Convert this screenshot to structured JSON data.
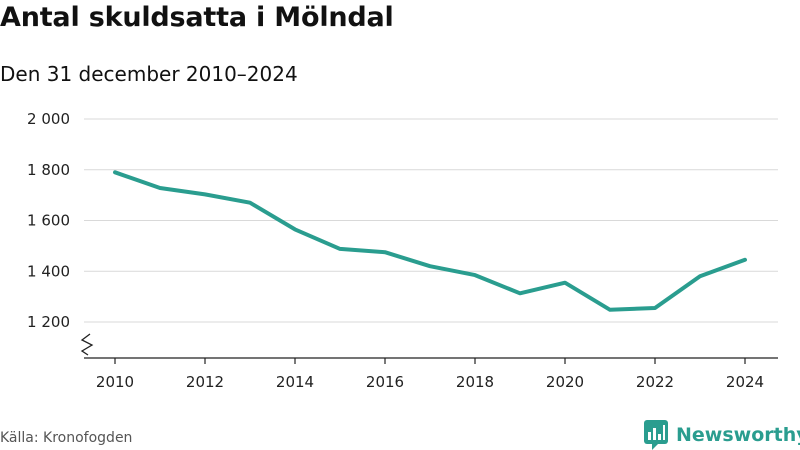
{
  "title": "Antal skuldsatta i Mölndal",
  "subtitle": "Den 31 december 2010–2024",
  "source": "Källa: Kronofogden",
  "brand": "Newsworthy",
  "colors": {
    "line": "#2a9d8f",
    "grid": "#d9d9d9",
    "axis": "#222222",
    "brand": "#2a9d8f"
  },
  "chart_data": {
    "type": "line",
    "title": "Antal skuldsatta i Mölndal",
    "subtitle": "Den 31 december 2010–2024",
    "xlabel": "",
    "ylabel": "",
    "x": [
      2010,
      2011,
      2012,
      2013,
      2014,
      2015,
      2016,
      2017,
      2018,
      2019,
      2020,
      2021,
      2022,
      2023,
      2024
    ],
    "series": [
      {
        "name": "Antal skuldsatta",
        "values": [
          1790,
          1728,
          1703,
          1670,
          1565,
          1488,
          1475,
          1420,
          1385,
          1313,
          1355,
          1248,
          1255,
          1380,
          1445
        ]
      }
    ],
    "ylim": [
      1050,
      2000
    ],
    "y_ticks": [
      1200,
      1400,
      1600,
      1800,
      2000
    ],
    "y_tick_labels": [
      "1 200",
      "1 400",
      "1 600",
      "1 800",
      "2 000"
    ],
    "x_ticks": [
      2010,
      2012,
      2014,
      2016,
      2018,
      2020,
      2022,
      2024
    ],
    "x_tick_labels": [
      "2010",
      "2012",
      "2014",
      "2016",
      "2018",
      "2020",
      "2022",
      "2024"
    ],
    "grid": true,
    "axis_break": true
  }
}
